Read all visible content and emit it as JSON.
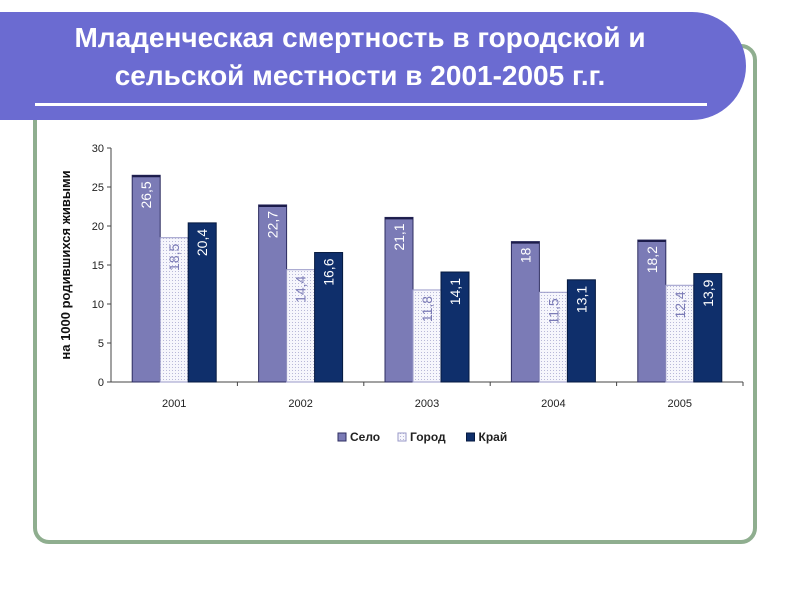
{
  "title": {
    "line1": "Младенческая смертность в городской и",
    "line2": "сельской местности в 2001-2005 г.г."
  },
  "colors": {
    "title_band": "#6b6bd1",
    "frame": "#8fae8f",
    "selo": "#7b7bb6",
    "gorod": "#f2f2fa",
    "krai": "#0f2f6b"
  },
  "chart_data": {
    "type": "bar",
    "categories": [
      "2001",
      "2002",
      "2003",
      "2004",
      "2005"
    ],
    "series": [
      {
        "name": "Село",
        "values": [
          26.5,
          22.7,
          21.1,
          18,
          18.2
        ],
        "labels": [
          "26,5",
          "22,7",
          "21,1",
          "18",
          "18,2"
        ]
      },
      {
        "name": "Город",
        "values": [
          18.5,
          14.4,
          11.8,
          11.5,
          12.4
        ],
        "labels": [
          "18,5",
          "14,4",
          "11,8",
          "11,5",
          "12,4"
        ]
      },
      {
        "name": "Край",
        "values": [
          20.4,
          16.6,
          14.1,
          13.1,
          13.9
        ],
        "labels": [
          "20,4",
          "16,6",
          "14,1",
          "13,1",
          "13,9"
        ]
      }
    ],
    "ylabel": "на 1000 родившихся живыми",
    "xlabel": "",
    "ylim": [
      0,
      30
    ],
    "yticks": [
      0,
      5,
      10,
      15,
      20,
      25,
      30
    ],
    "legend_position": "bottom",
    "grid": false
  }
}
